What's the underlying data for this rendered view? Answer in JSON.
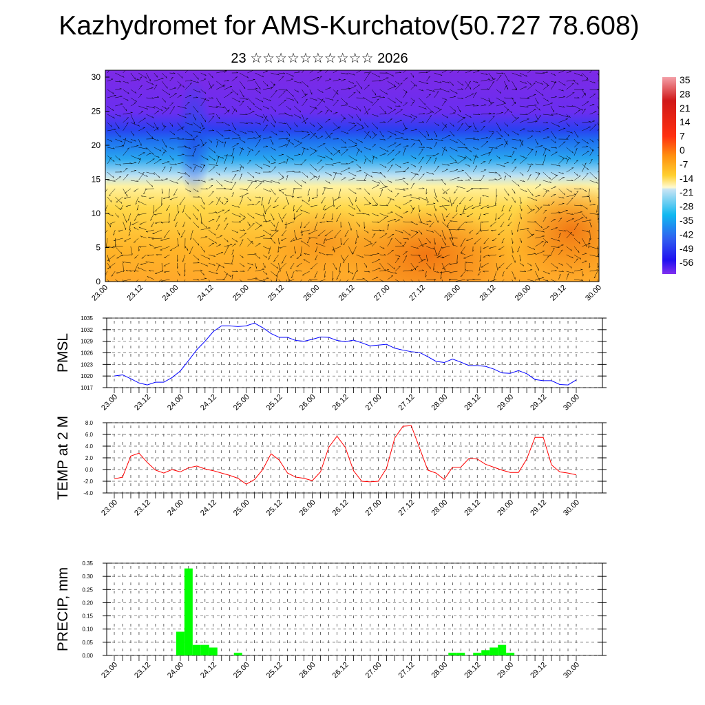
{
  "title": "Kazhydromet for AMS-Kurchatov(50.727 78.608)",
  "subtitle": "23 ☆☆☆☆☆☆☆☆☆☆ 2026",
  "time_labels": [
    "23.00",
    "23.12",
    "24.00",
    "24.12",
    "25.00",
    "25.12",
    "26.00",
    "26.12",
    "27.00",
    "27.12",
    "28.00",
    "28.12",
    "29.00",
    "29.12",
    "30.00"
  ],
  "colors": {
    "pmsl": "#0000ff",
    "temp": "#ff0000",
    "precip": "#00ff00"
  },
  "chart_data": [
    {
      "type": "heatmap",
      "title": "",
      "ylabel": "",
      "ylim": [
        0,
        31
      ],
      "yticks": [
        "0",
        "5",
        "10",
        "15",
        "20",
        "25",
        "30"
      ],
      "colorbar_labels": [
        "35",
        "28",
        "21",
        "14",
        "7",
        "0",
        "-7",
        "-14",
        "-21",
        "-28",
        "-35",
        "-42",
        "-49",
        "-56"
      ],
      "overlay": "wind-vectors"
    },
    {
      "type": "line",
      "ylabel": "PMSL",
      "ylim": [
        1017,
        1035
      ],
      "yticks": [
        "1035",
        "1032",
        "1029",
        "1026",
        "1023",
        "1020",
        "1017"
      ],
      "values": [
        1020,
        1020.3,
        1019.3,
        1018.2,
        1017.7,
        1018.4,
        1018.4,
        1019.6,
        1021.3,
        1024,
        1026.8,
        1029,
        1031.5,
        1033,
        1033,
        1032.8,
        1033,
        1033.7,
        1032.5,
        1031,
        1030,
        1030,
        1029.2,
        1029,
        1029.5,
        1030.1,
        1030,
        1029.2,
        1028.9,
        1029.3,
        1028.6,
        1027.8,
        1028,
        1028.2,
        1027.2,
        1026.7,
        1026.3,
        1026.1,
        1025,
        1023.8,
        1023.5,
        1024.4,
        1023.6,
        1022.7,
        1022.7,
        1022.5,
        1021.8,
        1020.8,
        1020.7,
        1021.4,
        1020.6,
        1019.1,
        1018.8,
        1018.8,
        1017.8,
        1017.7,
        1019
      ]
    },
    {
      "type": "line",
      "ylabel": "TEMP at 2 M",
      "ylim": [
        -4,
        8
      ],
      "yticks": [
        "8.0",
        "6.0",
        "4.0",
        "2.0",
        "0.0",
        "-2.0",
        "-4.0"
      ],
      "values": [
        -1.6,
        -1.3,
        2.3,
        2.8,
        1.2,
        -0.1,
        -0.6,
        0,
        -0.4,
        0.3,
        0.6,
        0.1,
        -0.2,
        -0.6,
        -1,
        -1.5,
        -2.5,
        -1.7,
        0,
        2.7,
        1.6,
        -0.6,
        -1.3,
        -1.5,
        -1.9,
        -0.4,
        3.8,
        5.7,
        3.8,
        -0.2,
        -2.0,
        -2.1,
        -2.0,
        0.2,
        5.4,
        7.4,
        7.5,
        3.7,
        -0.1,
        -0.6,
        -1.7,
        0.4,
        0.4,
        1.9,
        1.8,
        0.9,
        0.4,
        -0.1,
        -0.5,
        -0.5,
        1.8,
        5.5,
        5.5,
        0.8,
        -0.4,
        -0.6,
        -0.9
      ]
    },
    {
      "type": "bar",
      "ylabel": "PRECIP, mm",
      "ylim": [
        0,
        0.35
      ],
      "yticks": [
        "0.35",
        "0.30",
        "0.25",
        "0.20",
        "0.15",
        "0.10",
        "0.05",
        "0.00"
      ],
      "values": [
        0,
        0,
        0,
        0,
        0,
        0,
        0,
        0,
        0.09,
        0.33,
        0.04,
        0.04,
        0.03,
        0,
        0,
        0.01,
        0,
        0,
        0,
        0,
        0,
        0,
        0,
        0,
        0,
        0,
        0,
        0,
        0,
        0,
        0,
        0,
        0,
        0,
        0,
        0,
        0,
        0,
        0,
        0,
        0,
        0.01,
        0.01,
        0,
        0.01,
        0.02,
        0.03,
        0.04,
        0.01,
        0,
        0,
        0,
        0,
        0,
        0,
        0,
        0
      ]
    }
  ]
}
